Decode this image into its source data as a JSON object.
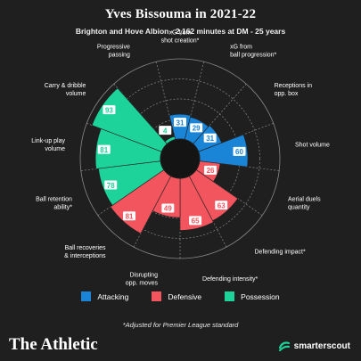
{
  "header": {
    "title": "Yves Bissouma in 2021-22",
    "subtitle": "Brighton and Hove Albion - 2,162 minutes at DM - 25 years"
  },
  "chart_data": {
    "type": "polar-bar",
    "categories": [
      "xG from\nshot creation*",
      "xG from\nball progression*",
      "Receptions in\nopp. box",
      "Shot volume",
      "Aerial duels\nquantity",
      "Defending impact*",
      "Defending intensity*",
      "Disrupting\nopp. moves",
      "Ball recoveries\n& interceptions",
      "Ball retention\nability*",
      "Link-up play\nvolume",
      "Carry & dribble\nvolume",
      "Progressive\npassing"
    ],
    "values": [
      31,
      29,
      31,
      60,
      26,
      63,
      65,
      49,
      81,
      78,
      81,
      93,
      4
    ],
    "groups": [
      "Attacking",
      "Attacking",
      "Attacking",
      "Attacking",
      "Defensive",
      "Defensive",
      "Defensive",
      "Defensive",
      "Defensive",
      "Possession",
      "Possession",
      "Possession",
      "Possession"
    ],
    "rlim": [
      0,
      100
    ]
  },
  "legend": {
    "items": [
      {
        "label": "Attacking",
        "color": "#1a84d6"
      },
      {
        "label": "Defensive",
        "color": "#f2555d"
      },
      {
        "label": "Possession",
        "color": "#1ed39a"
      }
    ]
  },
  "footnote": "*Adjusted for Premier League standard",
  "brand": "The Athletic",
  "scout": "smarterscout"
}
